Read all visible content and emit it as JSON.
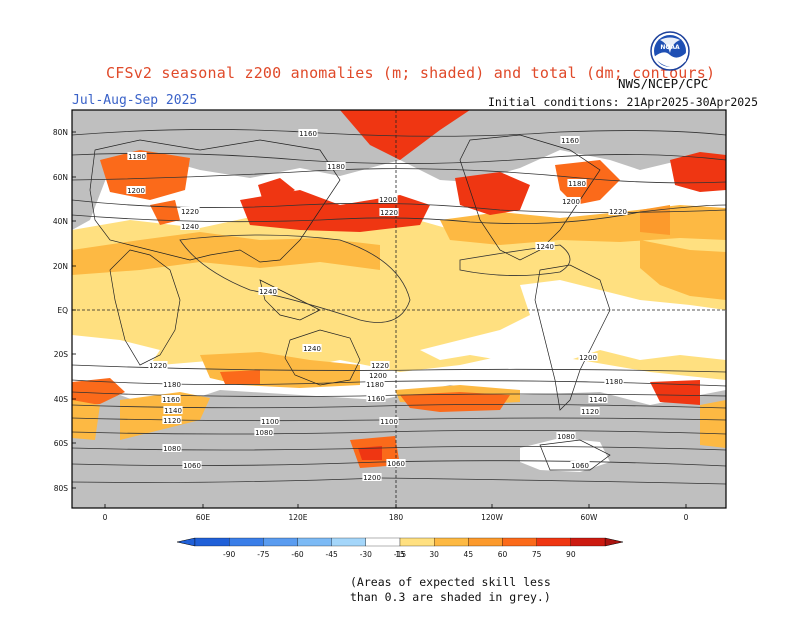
{
  "header": {
    "title": "CFSv2 seasonal z200 anomalies (m; shaded) and total (dm; contours)",
    "season": "Jul-Aug-Sep 2025",
    "agency": "NWS/NCEP/CPC",
    "initial_conditions": "Initial conditions: 21Apr2025-30Apr2025",
    "logo_text": "NOAA"
  },
  "map": {
    "lat_labels": [
      "80N",
      "60N",
      "40N",
      "20N",
      "EQ",
      "20S",
      "40S",
      "60S",
      "80S"
    ],
    "lon_labels": [
      "0",
      "60E",
      "120E",
      "180",
      "120W",
      "60W",
      "0"
    ],
    "contour_labels": [
      "1160",
      "1160",
      "1180",
      "1180",
      "1180",
      "1200",
      "1200",
      "1200",
      "1220",
      "1220",
      "1220",
      "1240",
      "1240",
      "1240",
      "1240",
      "1220",
      "1220",
      "1200",
      "1200",
      "1180",
      "1180",
      "1180",
      "1160",
      "1160",
      "1140",
      "1140",
      "1120",
      "1120",
      "1100",
      "1100",
      "1080",
      "1080",
      "1080",
      "1060",
      "1060",
      "1060",
      "1200"
    ],
    "colors": {
      "grey": "#bfbfbf",
      "neutral": "#ffffff",
      "pos15": "#ffe080",
      "pos30": "#fdb943",
      "pos45": "#fc9a2c",
      "pos60": "#fb6a1a",
      "pos75": "#ef3612",
      "pos90": "#cc1a10"
    }
  },
  "colorbar": {
    "ticks": [
      "-90",
      "-75",
      "-60",
      "-45",
      "-30",
      "-15",
      "15",
      "30",
      "45",
      "60",
      "75",
      "90"
    ],
    "colors": [
      "#2060d8",
      "#3a7ee8",
      "#5a9cf0",
      "#7cbaf5",
      "#a4d6fa",
      "#ffffff",
      "#ffe080",
      "#fdb943",
      "#fc9a2c",
      "#fb6a1a",
      "#ef3612",
      "#cc1a10"
    ]
  },
  "note": {
    "line1": "(Areas of expected skill less",
    "line2": "than 0.3 are shaded in grey.)"
  }
}
